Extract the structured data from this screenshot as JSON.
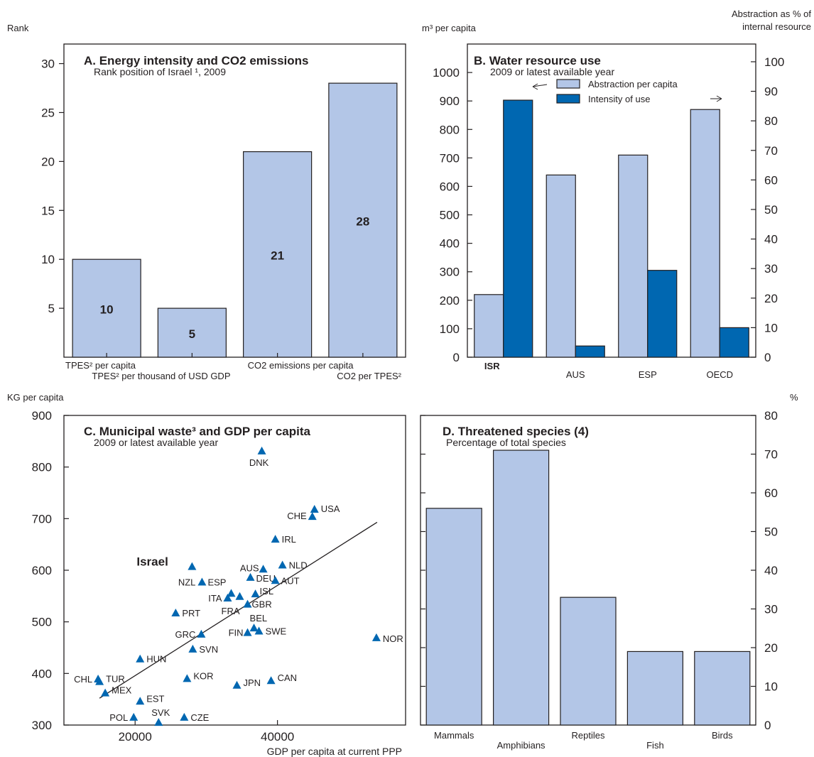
{
  "colors": {
    "light_bar": "#b3c6e7",
    "dark_bar": "#0067b1",
    "ink": "#231f20"
  },
  "panelA": {
    "unit_left": "Rank",
    "title": "A. Energy intensity and CO2 emissions",
    "subtitle": "Rank position of Israel ¹, 2009"
  },
  "panelB": {
    "unit_left": "m³ per capita",
    "unit_right_line1": "Abstraction as % of",
    "unit_right_line2": "internal resource",
    "title": "B. Water resource use",
    "subtitle": "2009 or latest available year",
    "legend": [
      "Abstraction per capita",
      "Intensity of use"
    ]
  },
  "panelC": {
    "unit_left": "KG per capita",
    "title": "C. Municipal waste³ and GDP per capita",
    "subtitle": "2009 or latest available year",
    "xlabel": "GDP per capita at current PPP",
    "highlight": "Israel"
  },
  "panelD": {
    "unit_right": "%",
    "title": "D. Threatened species (4)",
    "subtitle": "Percentage of total species"
  },
  "chart_data": [
    {
      "type": "bar",
      "title": "A. Energy intensity and CO2 emissions",
      "subtitle": "Rank position of Israel ¹, 2009",
      "ylabel": "Rank",
      "categories": [
        "TPES² per capita",
        "TPES² per thousand of USD GDP",
        "CO2 emissions per capita",
        "CO2 per TPES²"
      ],
      "values": [
        10,
        5,
        21,
        28
      ],
      "ylim": [
        0,
        32
      ],
      "yticks": [
        5,
        10,
        15,
        20,
        25,
        30
      ]
    },
    {
      "type": "bar",
      "title": "B. Water resource use",
      "subtitle": "2009 or latest available year",
      "ylabel": "m³ per capita",
      "y2label": "Abstraction as % of internal resource",
      "categories": [
        "ISR",
        "AUS",
        "ESP",
        "OECD"
      ],
      "series": [
        {
          "name": "Abstraction per capita",
          "axis": "left",
          "values": [
            220,
            640,
            710,
            870
          ]
        },
        {
          "name": "Intensity of use",
          "axis": "right",
          "values": [
            87,
            3.8,
            29.4,
            10
          ]
        }
      ],
      "ylim": [
        0,
        1100
      ],
      "yticks": [
        0,
        100,
        200,
        300,
        400,
        500,
        600,
        700,
        800,
        900,
        1000
      ],
      "y2lim": [
        0,
        106
      ],
      "y2ticks": [
        0,
        10,
        20,
        30,
        40,
        50,
        60,
        70,
        80,
        90,
        100
      ]
    },
    {
      "type": "scatter",
      "title": "C. Municipal waste³ and GDP per capita",
      "subtitle": "2009 or latest available year",
      "xlabel": "GDP per capita at current PPP",
      "ylabel": "KG per capita",
      "xlim": [
        10000,
        58000
      ],
      "ylim": [
        300,
        900
      ],
      "xticks": [
        20000,
        40000
      ],
      "yticks": [
        300,
        400,
        500,
        600,
        700,
        800,
        900
      ],
      "points": [
        {
          "label": "Israel",
          "x": 28000,
          "y": 606
        },
        {
          "label": "DNK",
          "x": 37800,
          "y": 830
        },
        {
          "label": "USA",
          "x": 45200,
          "y": 717
        },
        {
          "label": "CHE",
          "x": 44900,
          "y": 703
        },
        {
          "label": "IRL",
          "x": 39700,
          "y": 659
        },
        {
          "label": "NLD",
          "x": 40700,
          "y": 609
        },
        {
          "label": "AUS",
          "x": 38000,
          "y": 601
        },
        {
          "label": "DEU",
          "x": 36200,
          "y": 585
        },
        {
          "label": "AUT",
          "x": 39700,
          "y": 579
        },
        {
          "label": "NZL",
          "x": 29400,
          "y": 576
        },
        {
          "label": "ESP",
          "x": 33500,
          "y": 554
        },
        {
          "label": "ISL",
          "x": 36900,
          "y": 553
        },
        {
          "label": "ITA",
          "x": 33000,
          "y": 545
        },
        {
          "label": "FRA",
          "x": 34700,
          "y": 548
        },
        {
          "label": "GBR",
          "x": 35800,
          "y": 533
        },
        {
          "label": "PRT",
          "x": 25700,
          "y": 516
        },
        {
          "label": "BEL",
          "x": 36700,
          "y": 487
        },
        {
          "label": "FIN",
          "x": 35800,
          "y": 478
        },
        {
          "label": "SWE",
          "x": 37400,
          "y": 481
        },
        {
          "label": "GRC",
          "x": 29300,
          "y": 475
        },
        {
          "label": "NOR",
          "x": 53900,
          "y": 468
        },
        {
          "label": "SVN",
          "x": 28100,
          "y": 446
        },
        {
          "label": "HUN",
          "x": 20700,
          "y": 427
        },
        {
          "label": "KOR",
          "x": 27300,
          "y": 389
        },
        {
          "label": "CAN",
          "x": 39100,
          "y": 385
        },
        {
          "label": "JPN",
          "x": 34300,
          "y": 376
        },
        {
          "label": "CHL",
          "x": 14800,
          "y": 388
        },
        {
          "label": "TUR",
          "x": 15000,
          "y": 383
        },
        {
          "label": "MEX",
          "x": 15800,
          "y": 361
        },
        {
          "label": "EST",
          "x": 20700,
          "y": 345
        },
        {
          "label": "POL",
          "x": 19800,
          "y": 314
        },
        {
          "label": "CZE",
          "x": 26900,
          "y": 314
        },
        {
          "label": "SVK",
          "x": 23300,
          "y": 304
        }
      ],
      "trendline": {
        "x": [
          15000,
          54000
        ],
        "y": [
          352,
          693
        ]
      }
    },
    {
      "type": "bar",
      "title": "D. Threatened species (4)",
      "subtitle": "Percentage of total species",
      "y2label": "%",
      "categories": [
        "Mammals",
        "Amphibians",
        "Reptiles",
        "Fish",
        "Birds"
      ],
      "values": [
        56,
        71,
        33,
        19,
        19
      ],
      "ylim": [
        0,
        80
      ],
      "yticks": [
        0,
        10,
        20,
        30,
        40,
        50,
        60,
        70,
        80
      ]
    }
  ]
}
